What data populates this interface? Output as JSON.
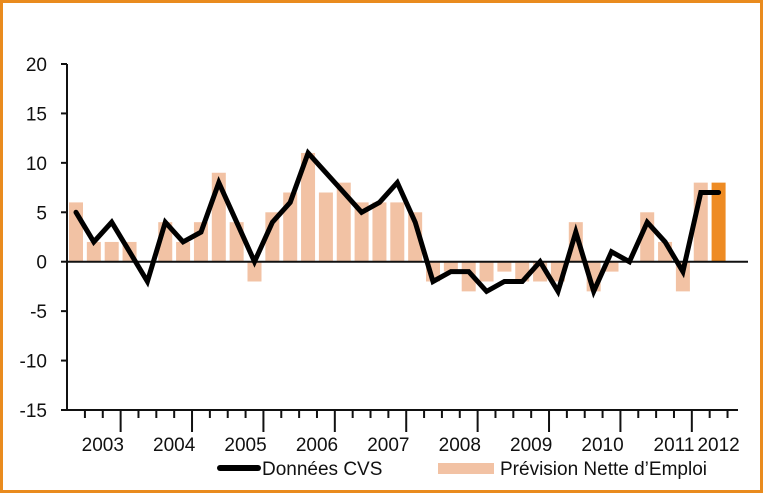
{
  "chart_data": {
    "type": "bar",
    "quarters_per_year": 4,
    "x_tick_labels": [
      "2003",
      "2004",
      "2005",
      "2006",
      "2007",
      "2008",
      "2009",
      "2010",
      "2011",
      "2012"
    ],
    "ylim": [
      -15,
      20
    ],
    "y_ticks": [
      20,
      15,
      10,
      5,
      0,
      -5,
      -10,
      -15
    ],
    "series": [
      {
        "name": "Prévision Nette d’Emploi",
        "kind": "bar",
        "color": "#f2c2a4",
        "highlight_color": "#ee8b23",
        "values": [
          6,
          2,
          2,
          2,
          0,
          4,
          2,
          4,
          9,
          4,
          -2,
          5,
          7,
          11,
          7,
          8,
          6,
          6,
          6,
          5,
          -2,
          -1,
          -3,
          -2,
          -1,
          -2,
          -2,
          -2,
          4,
          -3,
          -1,
          0,
          5,
          2,
          -3,
          8,
          8
        ]
      },
      {
        "name": "Données CVS",
        "kind": "line",
        "color": "#000000",
        "values": [
          5,
          2,
          4,
          1,
          -2,
          4,
          2,
          3,
          8,
          4,
          0,
          4,
          6,
          11,
          9,
          7,
          5,
          6,
          8,
          4,
          -2,
          -1,
          -1,
          -3,
          -2,
          -2,
          0,
          -3,
          3,
          -3,
          1,
          0,
          4,
          2,
          -1,
          7,
          7
        ]
      }
    ],
    "legend_position": "bottom-right",
    "grid": false
  }
}
